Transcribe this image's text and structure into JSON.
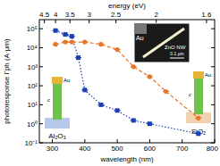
{
  "chart_data": {
    "type": "scatter",
    "x_label": "wavelength (nm)",
    "y_label": "photoresponse Γph (A·µm)",
    "x2_label": "energy (eV)",
    "log": "y",
    "xlim": [
      260,
      800
    ],
    "xticks": [
      300,
      400,
      500,
      600,
      700,
      800
    ],
    "x2ticks": [
      4.5,
      4,
      3.5,
      3,
      2.5,
      2,
      1.6
    ],
    "ylim": [
      0.1,
      300000
    ],
    "yticks": [
      {
        "value": 0.1,
        "label": "10⁻¹"
      },
      {
        "value": 1,
        "label": "10⁰"
      },
      {
        "value": 10,
        "label": "10¹"
      },
      {
        "value": 100,
        "label": "10²"
      },
      {
        "value": 1000,
        "label": "10³"
      },
      {
        "value": 10000,
        "label": "10⁴"
      },
      {
        "value": 100000,
        "label": "10⁵"
      }
    ],
    "series": [
      {
        "name": "Al₂O₃",
        "color": "#1a3fb5",
        "marker": "square",
        "line_style": "dotted",
        "x": [
          310,
          340,
          360,
          380,
          400,
          450,
          500,
          550,
          600,
          750
        ],
        "values": [
          80000,
          50000,
          40000,
          3000,
          60,
          10,
          5,
          1.5,
          1,
          0.3
        ],
        "xerr": [
          10,
          10,
          10,
          10,
          10,
          10,
          10,
          10,
          10,
          10
        ]
      },
      {
        "name": "SiO₂",
        "color": "#e8762a",
        "marker": "circle",
        "line_style": "dashed",
        "x": [
          310,
          340,
          360,
          400,
          450,
          500,
          550,
          600,
          650,
          750
        ],
        "values": [
          15000,
          20000,
          20000,
          20000,
          15000,
          8000,
          1000,
          300,
          50,
          2
        ],
        "xerr": [
          10,
          10,
          10,
          10,
          10,
          10,
          10,
          10,
          10,
          10
        ]
      }
    ],
    "annotations": [
      "Au",
      "ZnO NW",
      "0.1 µm",
      "Au",
      "c",
      "Au",
      "c"
    ]
  }
}
